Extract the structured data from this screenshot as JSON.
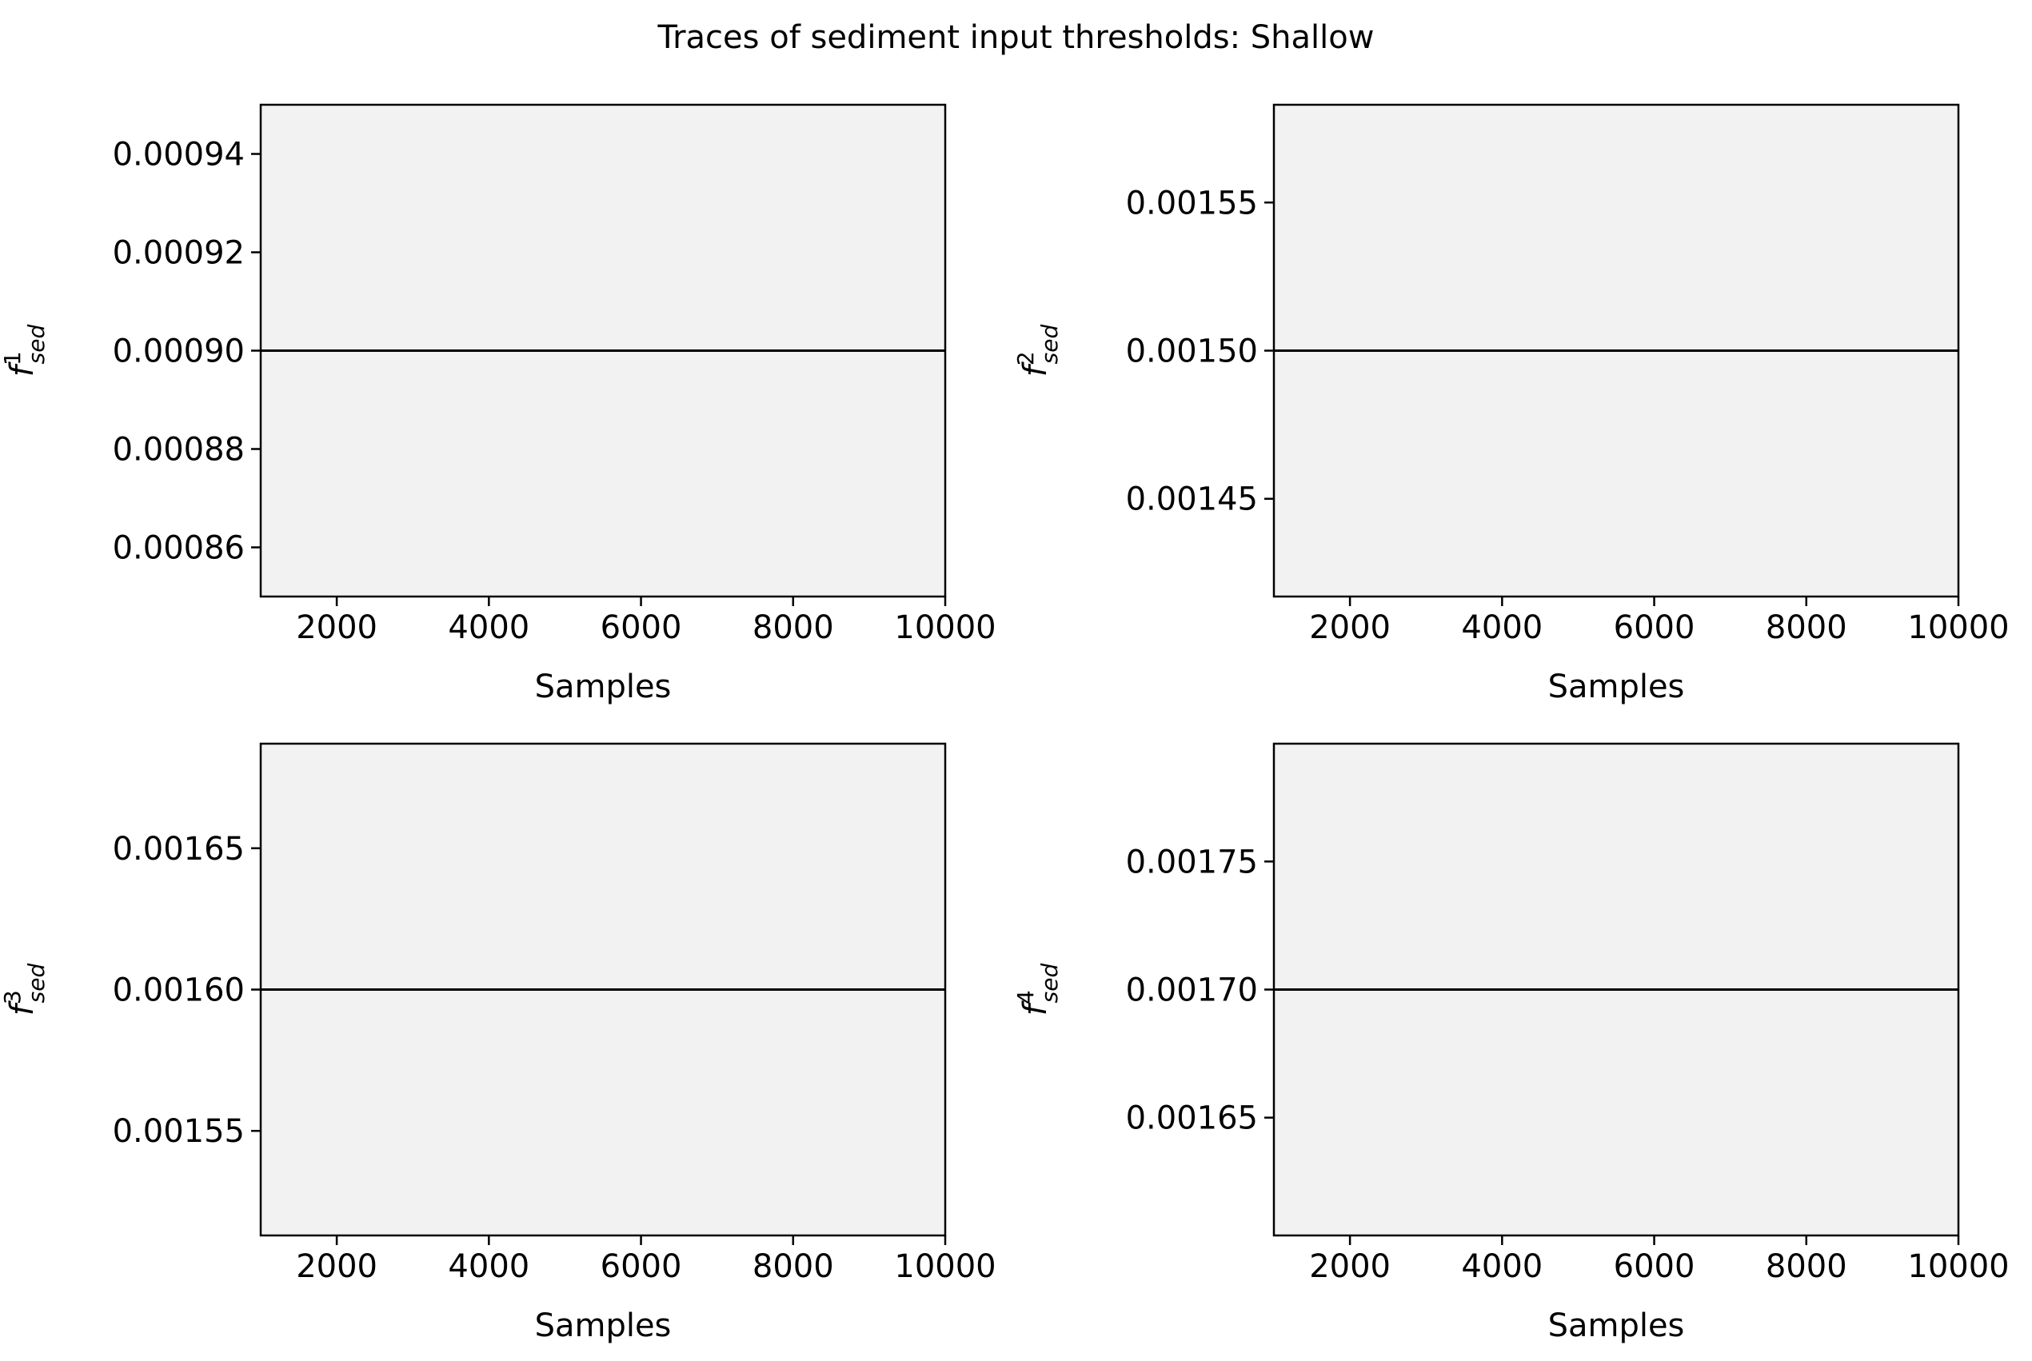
{
  "figure": {
    "title": "Traces of sediment input thresholds: Shallow"
  },
  "chart_data": [
    {
      "type": "line",
      "title": "",
      "xlabel": "Samples",
      "ylabel": {
        "base": "f",
        "sup": "1",
        "sub": "sed"
      },
      "xlim": [
        1000,
        10000
      ],
      "ylim": [
        0.00085,
        0.00095
      ],
      "xticks": [
        2000,
        4000,
        6000,
        8000,
        10000
      ],
      "yticks": [
        0.00086,
        0.00088,
        0.0009,
        0.00092,
        0.00094
      ],
      "ytick_labels": [
        "0.00086",
        "0.00088",
        "0.00090",
        "0.00092",
        "0.00094"
      ],
      "series": [
        {
          "x": [
            1000,
            10000
          ],
          "y": [
            0.0009,
            0.0009
          ],
          "color": "#000000"
        }
      ]
    },
    {
      "type": "line",
      "title": "",
      "xlabel": "Samples",
      "ylabel": {
        "base": "f",
        "sup": "2",
        "sub": "sed"
      },
      "xlim": [
        1000,
        10000
      ],
      "ylim": [
        0.001417,
        0.001583
      ],
      "xticks": [
        2000,
        4000,
        6000,
        8000,
        10000
      ],
      "yticks": [
        0.00145,
        0.0015,
        0.00155
      ],
      "ytick_labels": [
        "0.00145",
        "0.00150",
        "0.00155"
      ],
      "series": [
        {
          "x": [
            1000,
            10000
          ],
          "y": [
            0.0015,
            0.0015
          ],
          "color": "#000000"
        }
      ]
    },
    {
      "type": "line",
      "title": "",
      "xlabel": "Samples",
      "ylabel": {
        "base": "f",
        "sup": "3",
        "sub": "sed"
      },
      "xlim": [
        1000,
        10000
      ],
      "ylim": [
        0.001513,
        0.001687
      ],
      "xticks": [
        2000,
        4000,
        6000,
        8000,
        10000
      ],
      "yticks": [
        0.00155,
        0.0016,
        0.00165
      ],
      "ytick_labels": [
        "0.00155",
        "0.00160",
        "0.00165"
      ],
      "series": [
        {
          "x": [
            1000,
            10000
          ],
          "y": [
            0.0016,
            0.0016
          ],
          "color": "#000000"
        }
      ]
    },
    {
      "type": "line",
      "title": "",
      "xlabel": "Samples",
      "ylabel": {
        "base": "f",
        "sup": "4",
        "sub": "sed"
      },
      "xlim": [
        1000,
        10000
      ],
      "ylim": [
        0.001604,
        0.001796
      ],
      "xticks": [
        2000,
        4000,
        6000,
        8000,
        10000
      ],
      "yticks": [
        0.00165,
        0.0017,
        0.00175
      ],
      "ytick_labels": [
        "0.00165",
        "0.00170",
        "0.00175"
      ],
      "series": [
        {
          "x": [
            1000,
            10000
          ],
          "y": [
            0.0017,
            0.0017
          ],
          "color": "#000000"
        }
      ]
    }
  ],
  "style": {
    "axes_facecolor": "#f2f2f2",
    "line_color": "#000000"
  }
}
